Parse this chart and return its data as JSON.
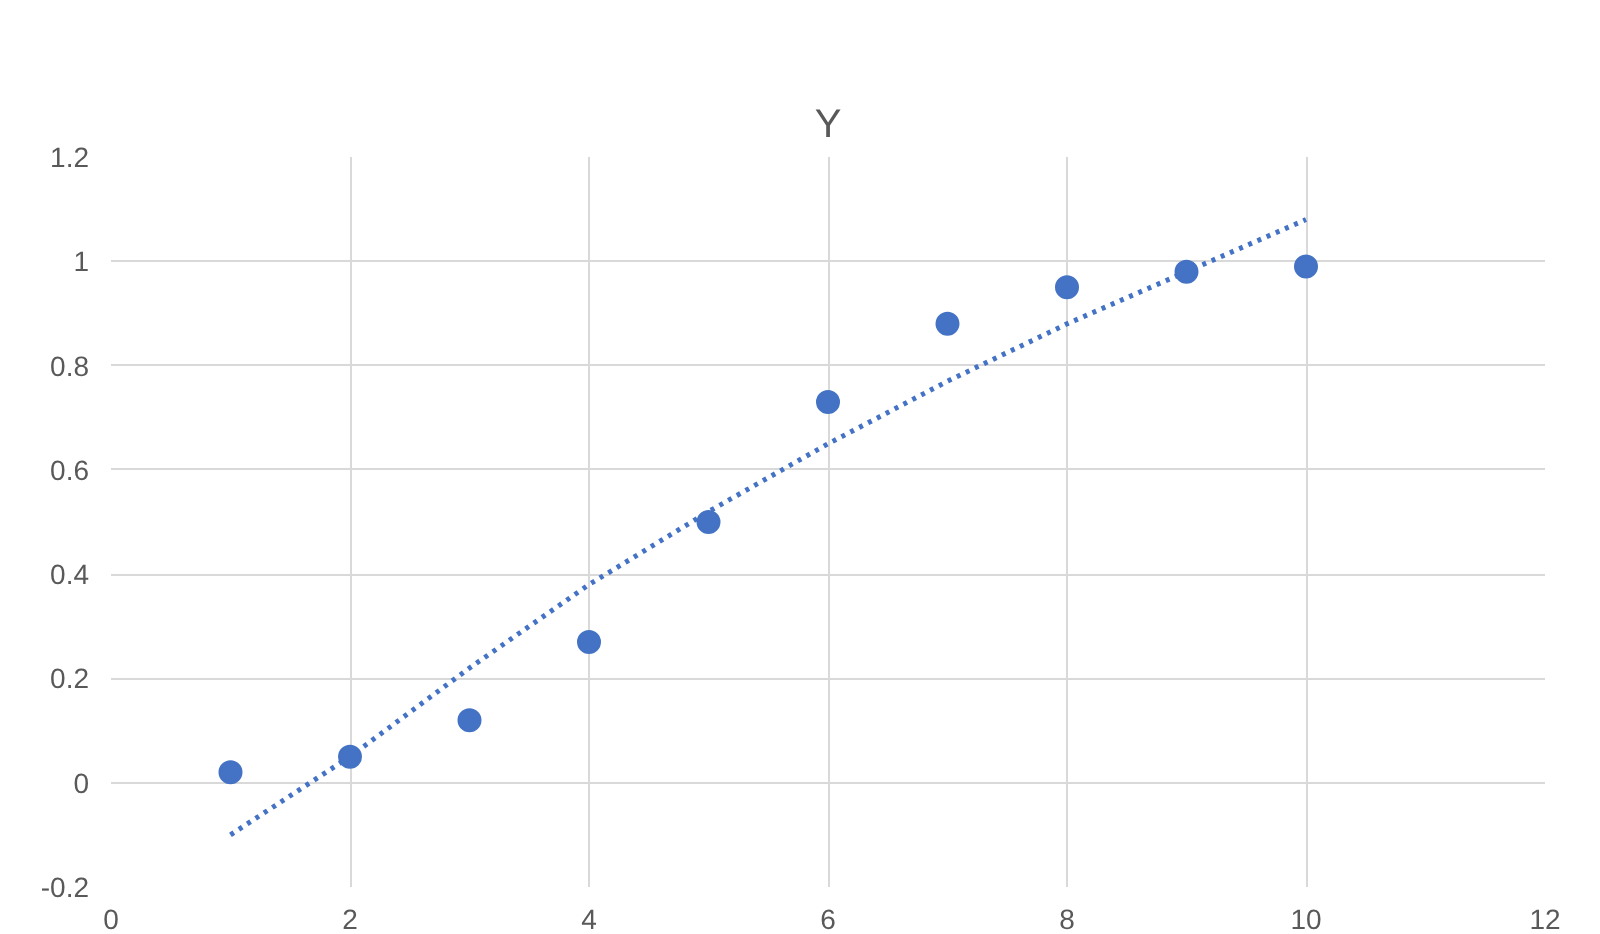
{
  "chart_data": {
    "type": "scatter",
    "title": "Y",
    "series": [
      {
        "color": "#4472c4",
        "marker": "circle",
        "x": [
          1,
          2,
          3,
          4,
          5,
          6,
          7,
          8,
          9,
          10
        ],
        "values": [
          0.02,
          0.05,
          0.12,
          0.27,
          0.5,
          0.73,
          0.88,
          0.95,
          0.98,
          0.99
        ]
      },
      {
        "type": "line",
        "color": "#4472c4",
        "line_style": "dotted",
        "marker": "none",
        "x": [
          1,
          2,
          3,
          4,
          5,
          6,
          7,
          8,
          9,
          10
        ],
        "values": [
          -0.1,
          0.05,
          0.22,
          0.38,
          0.52,
          0.65,
          0.77,
          0.88,
          0.98,
          1.08
        ]
      }
    ],
    "xlim": [
      0,
      12
    ],
    "xticks": [
      0,
      2,
      4,
      6,
      8,
      10,
      12
    ],
    "ylim": [
      -0.2,
      1.2
    ],
    "yticks": [
      -0.2,
      0,
      0.2,
      0.4,
      0.6,
      0.8,
      1,
      1.2
    ],
    "grid": true
  }
}
